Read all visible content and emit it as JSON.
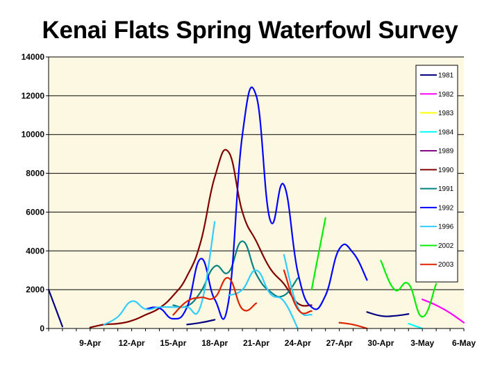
{
  "chart_data": {
    "type": "line",
    "title": "Kenai Flats Spring Waterfowl Survey",
    "xlabel": "",
    "ylabel": "",
    "ylim": [
      0,
      14000
    ],
    "y_ticks": [
      "0",
      "2000",
      "4000",
      "6000",
      "8000",
      "10000",
      "12000",
      "14000"
    ],
    "x_tick_labels": [
      "9-Apr",
      "12-Apr",
      "15-Apr",
      "18-Apr",
      "21-Apr",
      "24-Apr",
      "27-Apr",
      "30-Apr",
      "3-May",
      "6-May"
    ],
    "x_tick_dates": [
      "04-09",
      "04-12",
      "04-15",
      "04-18",
      "04-21",
      "04-24",
      "04-27",
      "04-30",
      "05-03",
      "05-06"
    ],
    "xlim": [
      "04-06",
      "05-06"
    ],
    "grid": "horizontal",
    "plot_background": "#fdf8e1",
    "legend_position": "right",
    "series": [
      {
        "name": "1981",
        "color": "#000080",
        "points": [
          [
            "04-06",
            2000
          ],
          [
            "04-07",
            100
          ],
          null,
          [
            "04-16",
            200
          ],
          [
            "04-17",
            300
          ],
          [
            "04-18",
            450
          ],
          null,
          [
            "04-29",
            850
          ],
          [
            "04-30",
            650
          ],
          [
            "05-01",
            650
          ],
          [
            "05-02",
            750
          ]
        ]
      },
      {
        "name": "1982",
        "color": "#ff00ff",
        "points": [
          [
            "05-03",
            1500
          ],
          [
            "05-04",
            1200
          ],
          [
            "05-05",
            800
          ],
          [
            "05-06",
            300
          ]
        ]
      },
      {
        "name": "1983",
        "color": "#ffff00",
        "points": []
      },
      {
        "name": "1984",
        "color": "#00ffff",
        "points": [
          [
            "05-02",
            250
          ],
          [
            "05-03",
            0
          ]
        ]
      },
      {
        "name": "1989",
        "color": "#800080",
        "points": []
      },
      {
        "name": "1990",
        "color": "#800000",
        "points": [
          [
            "04-09",
            50
          ],
          [
            "04-10",
            200
          ],
          [
            "04-11",
            250
          ],
          [
            "04-12",
            400
          ],
          [
            "04-13",
            700
          ],
          [
            "04-14",
            1050
          ],
          [
            "04-15",
            1700
          ],
          [
            "04-16",
            2700
          ],
          [
            "04-17",
            4500
          ],
          [
            "04-18",
            7800
          ],
          [
            "04-19",
            9100
          ],
          [
            "04-20",
            6000
          ],
          [
            "04-21",
            4500
          ],
          [
            "04-22",
            3100
          ],
          [
            "04-23",
            2300
          ],
          [
            "04-24",
            1300
          ],
          [
            "04-25",
            1200
          ]
        ]
      },
      {
        "name": "1991",
        "color": "#008080",
        "points": [
          [
            "04-15",
            1200
          ],
          [
            "04-16",
            1150
          ],
          [
            "04-17",
            1900
          ],
          [
            "04-18",
            3200
          ],
          [
            "04-19",
            2900
          ],
          [
            "04-20",
            4500
          ],
          [
            "04-21",
            2800
          ],
          [
            "04-22",
            1900
          ],
          [
            "04-23",
            1700
          ],
          [
            "04-24",
            2600
          ]
        ]
      },
      {
        "name": "1992",
        "color": "#0000ff",
        "points": [
          [
            "04-13",
            1000
          ],
          [
            "04-14",
            1050
          ],
          [
            "04-15",
            500
          ],
          [
            "04-16",
            1100
          ],
          [
            "04-17",
            3600
          ],
          [
            "04-18",
            1500
          ],
          [
            "04-19",
            1400
          ],
          [
            "04-20",
            10000
          ],
          [
            "04-21",
            12000
          ],
          [
            "04-22",
            5600
          ],
          [
            "04-23",
            7400
          ],
          [
            "04-24",
            2900
          ],
          [
            "04-25",
            1100
          ],
          [
            "04-26",
            1700
          ],
          [
            "04-27",
            4100
          ],
          [
            "04-28",
            3900
          ],
          [
            "04-29",
            2500
          ]
        ]
      },
      {
        "name": "1996",
        "color": "#33ccff",
        "points": [
          [
            "04-10",
            200
          ],
          [
            "04-11",
            600
          ],
          [
            "04-12",
            1400
          ],
          [
            "04-13",
            1000
          ],
          [
            "04-14",
            1100
          ],
          [
            "04-15",
            1100
          ],
          [
            "04-16",
            1100
          ],
          [
            "04-17",
            1200
          ],
          [
            "04-18",
            5500
          ],
          null,
          [
            "04-19",
            1700
          ],
          [
            "04-20",
            2000
          ],
          [
            "04-21",
            3000
          ],
          [
            "04-22",
            1800
          ],
          [
            "04-23",
            1400
          ],
          [
            "04-24",
            0
          ],
          null,
          [
            "04-23",
            3800
          ],
          [
            "04-24",
            1100
          ],
          [
            "04-25",
            700
          ]
        ]
      },
      {
        "name": "2002",
        "color": "#00ee00",
        "points": [
          [
            "04-25",
            2000
          ],
          [
            "04-26",
            5700
          ],
          null,
          [
            "04-30",
            3500
          ],
          [
            "05-01",
            2000
          ],
          [
            "05-02",
            2300
          ],
          [
            "05-03",
            600
          ],
          [
            "05-04",
            2300
          ]
        ]
      },
      {
        "name": "2003",
        "color": "#dd2200",
        "points": [
          [
            "04-15",
            700
          ],
          [
            "04-16",
            1400
          ],
          [
            "04-17",
            1600
          ],
          [
            "04-18",
            1600
          ],
          [
            "04-19",
            2600
          ],
          [
            "04-20",
            1000
          ],
          [
            "04-21",
            1300
          ],
          null,
          [
            "04-23",
            3000
          ],
          [
            "04-24",
            1000
          ],
          [
            "04-25",
            900
          ],
          null,
          [
            "04-27",
            300
          ],
          [
            "04-28",
            200
          ],
          [
            "04-29",
            0
          ]
        ]
      }
    ]
  }
}
